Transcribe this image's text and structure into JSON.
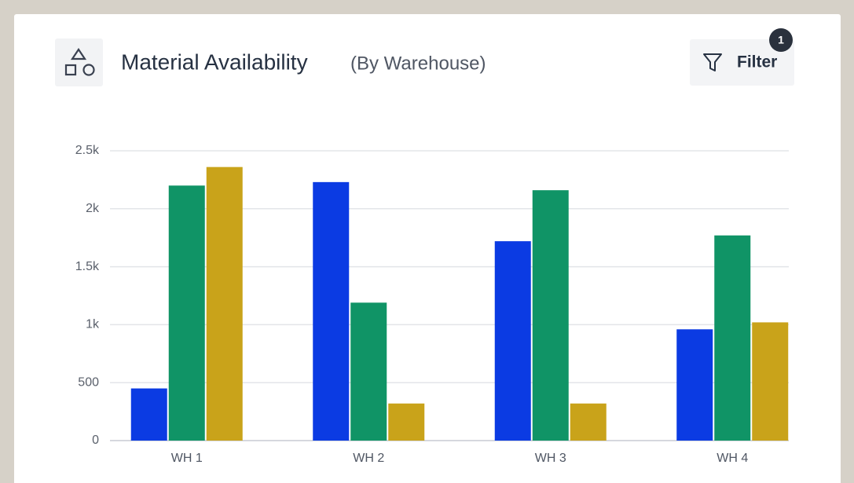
{
  "chart_data": {
    "type": "bar",
    "title": "Material Availability",
    "subtitle": "(By Warehouse)",
    "categories": [
      "WH 1",
      "WH 2",
      "WH 3",
      "WH 4"
    ],
    "series": [
      {
        "color": "#0b3be3",
        "values": [
          450,
          2230,
          1720,
          960
        ]
      },
      {
        "color": "#109466",
        "values": [
          2200,
          1190,
          2160,
          1770
        ]
      },
      {
        "color": "#c9a31a",
        "values": [
          2360,
          320,
          320,
          1020
        ]
      }
    ],
    "ylim": [
      0,
      2500
    ],
    "yticks": [
      0,
      500,
      {
        "value": 1000,
        "label": "1k"
      },
      {
        "value": 1500,
        "label": "1.5k"
      },
      {
        "value": 2000,
        "label": "2k"
      },
      {
        "value": 2500,
        "label": "2.5k"
      }
    ],
    "grid": true
  },
  "filter": {
    "label": "Filter",
    "count": 1
  }
}
